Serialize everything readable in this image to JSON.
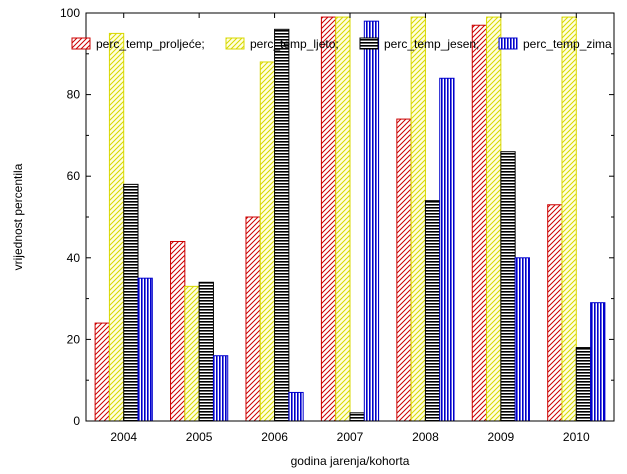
{
  "chart_data": {
    "type": "bar",
    "title": "",
    "xlabel": "godina jarenja/kohorta",
    "ylabel": "vrijednost percentila",
    "ylim": [
      0,
      100
    ],
    "yticks": [
      0,
      20,
      40,
      60,
      80,
      100
    ],
    "grid": false,
    "legend_position": "top",
    "categories": [
      "2004",
      "2005",
      "2006",
      "2007",
      "2008",
      "2009",
      "2010"
    ],
    "series": [
      {
        "name": "perc_temp_proljeće;",
        "values": [
          24,
          44,
          50,
          99,
          74,
          97,
          53
        ],
        "color": "#cc0000",
        "pattern": "diagonal"
      },
      {
        "name": "perc_temp_ljeto;",
        "values": [
          95,
          33,
          88,
          99,
          99,
          99,
          99
        ],
        "color": "#d8d800",
        "pattern": "diagonal"
      },
      {
        "name": "perc_temp_jesen;",
        "values": [
          58,
          34,
          96,
          2,
          54,
          66,
          18
        ],
        "color": "#000000",
        "pattern": "horizontal"
      },
      {
        "name": "perc_temp_zima",
        "values": [
          35,
          16,
          7,
          98,
          84,
          40,
          29
        ],
        "color": "#0000cc",
        "pattern": "vertical"
      }
    ]
  }
}
